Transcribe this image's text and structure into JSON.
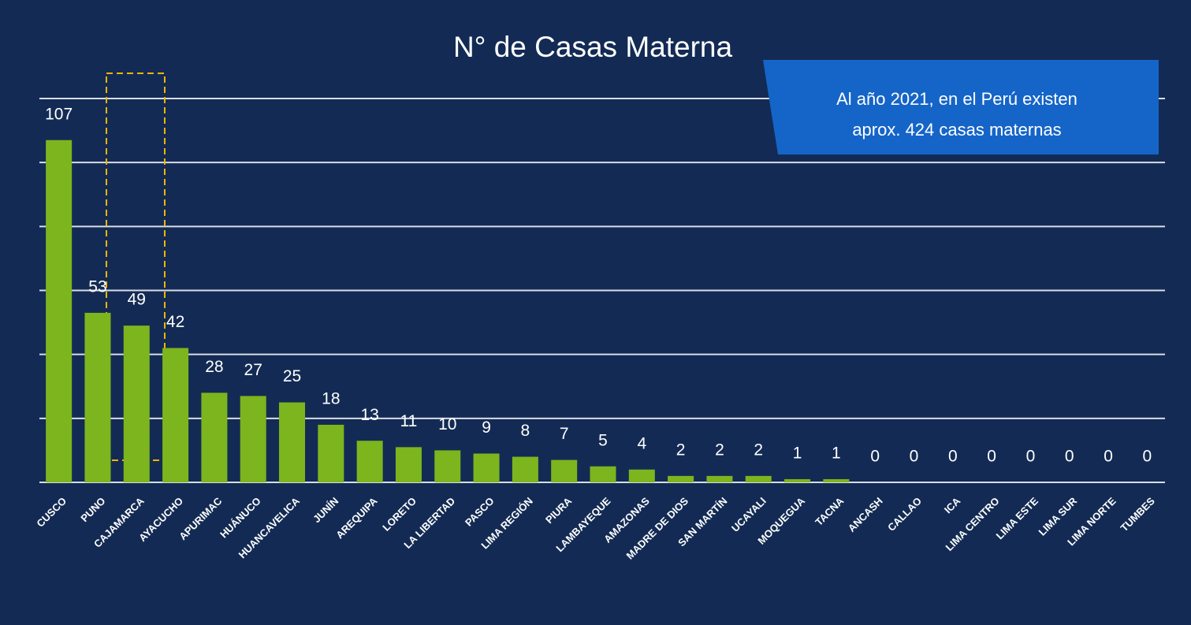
{
  "chart_data": {
    "type": "bar",
    "title": "N° de Casas Materna",
    "annotation": [
      "Al año 2021, en el Perú existen",
      "aprox. 424 casas maternas"
    ],
    "categories": [
      "CUSCO",
      "PUNO",
      "CAJAMARCA",
      "AYACUCHO",
      "APURIMAC",
      "HUÁNUCO",
      "HUANCAVELICA",
      "JUNÍN",
      "AREQUIPA",
      "LORETO",
      "LA LIBERTAD",
      "PASCO",
      "LIMA REGIÓN",
      "PIURA",
      "LAMBAYEQUE",
      "AMAZONAS",
      "MADRE DE DIOS",
      "SAN MARTÍN",
      "UCAYALI",
      "MOQUEGUA",
      "TACNA",
      "ANCASH",
      "CALLAO",
      "ICA",
      "LIMA CENTRO",
      "LIMA ESTE",
      "LIMA SUR",
      "LIMA NORTE",
      "TUMBES"
    ],
    "values": [
      107,
      53,
      49,
      42,
      28,
      27,
      25,
      18,
      13,
      11,
      10,
      9,
      8,
      7,
      5,
      4,
      2,
      2,
      2,
      1,
      1,
      0,
      0,
      0,
      0,
      0,
      0,
      0,
      0
    ],
    "color": "#7cb51e",
    "ylim": [
      0,
      120
    ],
    "yticks": [
      0,
      20,
      40,
      60,
      80,
      100,
      120
    ],
    "grid": true
  }
}
